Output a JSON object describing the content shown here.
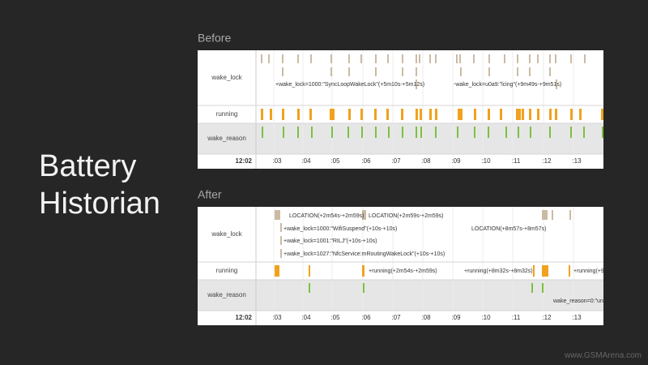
{
  "title": "Battery Historian",
  "watermark": "www.GSMArena.com",
  "panels": [
    {
      "heading": "Before",
      "rows": [
        "wake_lock",
        "running",
        "wake_reason"
      ],
      "time_labels": [
        "12:02",
        ":03",
        ":04",
        ":05",
        ":06",
        ":07",
        ":08",
        ":09",
        ":10",
        ":11",
        ":12",
        ":13"
      ],
      "annotations": [
        "+wake_lock=1000:\"SyncLoopWakeLock\"(+5m10s-+5m12s)",
        "-wake_lock=u0a9:\"lcing\"(+9m49s-+9m51s)"
      ]
    },
    {
      "heading": "After",
      "rows": [
        "wake_lock",
        "running",
        "wake_reason"
      ],
      "time_labels": [
        "12:02",
        ":03",
        ":04",
        ":05",
        ":06",
        ":07",
        ":08",
        ":09",
        ":10",
        ":11",
        ":12",
        ":13"
      ],
      "annotations": [
        "LOCATION(+2m54s-+2m59s)",
        "LOCATION(+2m59s-+2m59s)",
        "+wake_lock=1000:\"WifiSuspend\"(+10s-+10s)",
        "LOCATION(+8m57s-+8m57s)",
        "+wake_lock=1001:\"RILJ\"(+10s-+10s)",
        "+wake_lock=1027:\"NfcService:mRoutingWakeLock\"(+10s-+10s)",
        "+running(+2m54s-+2m59s)",
        "+running(+8m32s-+8m32s)",
        "+running(+9m",
        "wake_reason=0:\"unkn"
      ]
    }
  ]
}
